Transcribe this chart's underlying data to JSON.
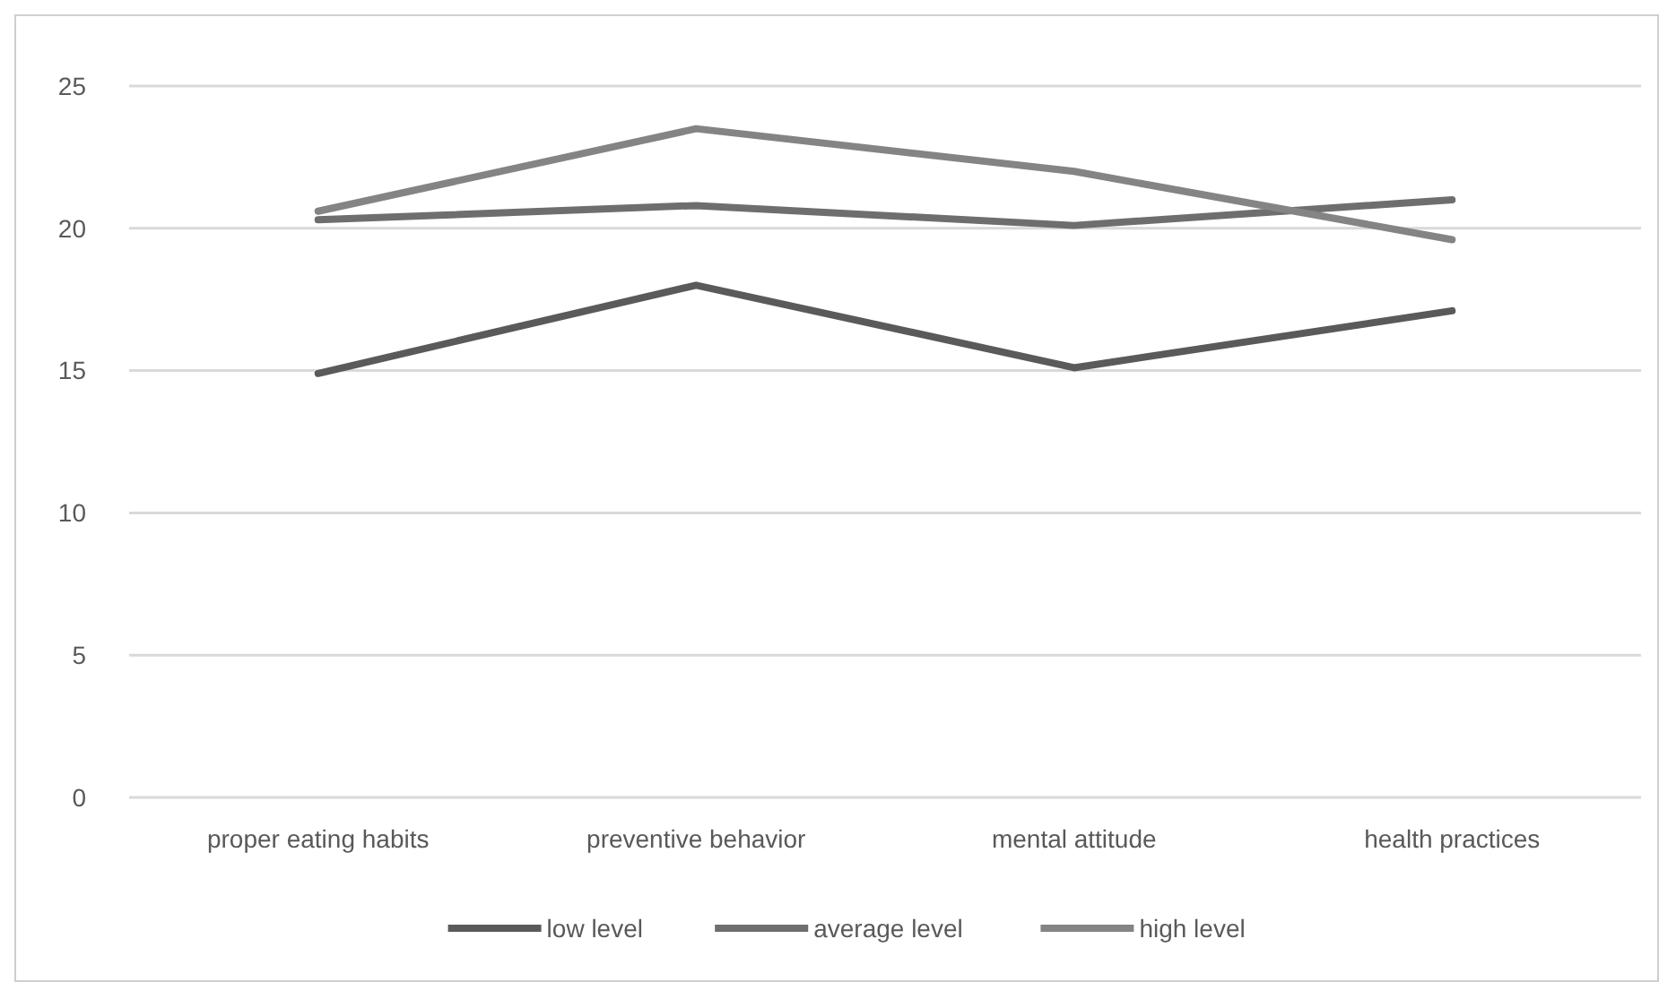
{
  "chart_data": {
    "type": "line",
    "categories": [
      "proper eating habits",
      "preventive behavior",
      "mental attitude",
      "health practices"
    ],
    "series": [
      {
        "name": "low level",
        "color": "#5a5a5a",
        "values": [
          14.9,
          18.0,
          15.1,
          17.1
        ]
      },
      {
        "name": "average level",
        "color": "#6e6e6e",
        "values": [
          20.3,
          20.8,
          20.1,
          21.0
        ]
      },
      {
        "name": "high level",
        "color": "#848484",
        "values": [
          20.6,
          23.5,
          22.0,
          19.6
        ]
      }
    ],
    "ylim": [
      0,
      25
    ],
    "yticks": [
      0,
      5,
      10,
      15,
      20,
      25
    ],
    "grid": "y",
    "legend": "bottom",
    "marker": "none",
    "line_style": "solid"
  }
}
